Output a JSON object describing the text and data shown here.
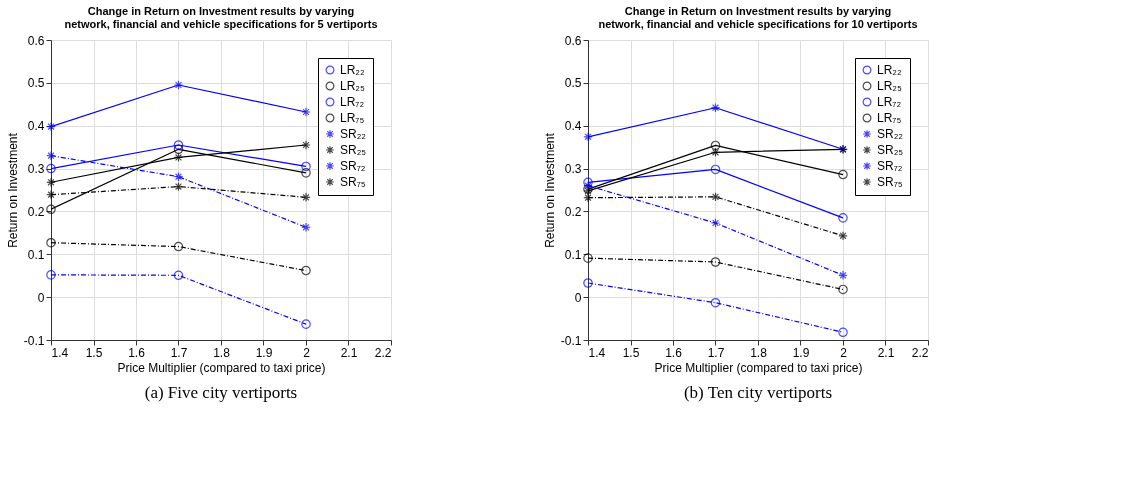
{
  "chart_data": [
    {
      "type": "line",
      "title": "Change in Return on Investment results by varying\nnetwork, financial and vehicle specifications for 5 vertiports",
      "xlabel": "Price Multiplier (compared to taxi price)",
      "ylabel": "Return on Investment",
      "x": [
        1.4,
        1.7,
        2
      ],
      "xlim": [
        1.4,
        2.2
      ],
      "xticks": [
        1.4,
        1.5,
        1.6,
        1.7,
        1.8,
        1.9,
        {
          "value": 2,
          "label": "2"
        },
        2.1,
        2.2
      ],
      "ylim": [
        -0.1,
        0.6
      ],
      "yticks": [
        -0.1,
        {
          "value": 0,
          "label": "0"
        },
        0.1,
        0.2,
        0.3,
        0.4,
        0.5,
        0.6
      ],
      "grid": true,
      "legend": "top right",
      "annotations": [
        "(a) Five city vertiports"
      ],
      "series": [
        {
          "name": "LR₂₂",
          "color": "#0000ff",
          "marker": "circle",
          "line_style": "solid",
          "values": [
            0.3,
            0.355,
            0.305
          ]
        },
        {
          "name": "LR₂₅",
          "color": "#000000",
          "marker": "circle",
          "line_style": "solid",
          "values": [
            0.205,
            0.345,
            0.29
          ]
        },
        {
          "name": "LR₇₂",
          "color": "#0000ff",
          "marker": "circle",
          "line_style": "dashdot",
          "values": [
            0.052,
            0.051,
            -0.063
          ]
        },
        {
          "name": "LR₇₅",
          "color": "#000000",
          "marker": "circle",
          "line_style": "dashdot",
          "values": [
            0.127,
            0.118,
            0.062
          ]
        },
        {
          "name": "SR₂₂",
          "color": "#0000ff",
          "marker": "cross",
          "line_style": "solid",
          "values": [
            0.398,
            0.495,
            0.432
          ]
        },
        {
          "name": "SR₂₅",
          "color": "#000000",
          "marker": "cross",
          "line_style": "solid",
          "values": [
            0.268,
            0.326,
            0.355
          ]
        },
        {
          "name": "SR₇₂",
          "color": "#0000ff",
          "marker": "cross",
          "line_style": "dashdot",
          "values": [
            0.33,
            0.281,
            0.163
          ]
        },
        {
          "name": "SR₇₅",
          "color": "#000000",
          "marker": "cross",
          "line_style": "dashdot",
          "values": [
            0.239,
            0.258,
            0.233
          ]
        }
      ]
    },
    {
      "type": "line",
      "title": "Change in Return on Investment results by varying\nnetwork, financial and vehicle specifications for 10 vertiports",
      "xlabel": "Price Multiplier (compared to taxi price)",
      "ylabel": "Return on Investment",
      "x": [
        1.4,
        1.7,
        2
      ],
      "xlim": [
        1.4,
        2.2
      ],
      "xticks": [
        1.4,
        1.5,
        1.6,
        1.7,
        1.8,
        1.9,
        {
          "value": 2,
          "label": "2"
        },
        2.1,
        2.2
      ],
      "ylim": [
        -0.1,
        0.6
      ],
      "yticks": [
        -0.1,
        {
          "value": 0,
          "label": "0"
        },
        0.1,
        0.2,
        0.3,
        0.4,
        0.5,
        0.6
      ],
      "grid": true,
      "legend": "top right",
      "annotations": [
        "(b) Ten city vertiports"
      ],
      "series": [
        {
          "name": "LR₂₂",
          "color": "#0000ff",
          "marker": "circle",
          "line_style": "solid",
          "values": [
            0.268,
            0.298,
            0.185
          ]
        },
        {
          "name": "LR₂₅",
          "color": "#000000",
          "marker": "circle",
          "line_style": "solid",
          "values": [
            0.252,
            0.354,
            0.286
          ]
        },
        {
          "name": "LR₇₂",
          "color": "#0000ff",
          "marker": "circle",
          "line_style": "dashdot",
          "values": [
            0.033,
            -0.013,
            -0.082
          ]
        },
        {
          "name": "LR₇₅",
          "color": "#000000",
          "marker": "circle",
          "line_style": "dashdot",
          "values": [
            0.091,
            0.082,
            0.018
          ]
        },
        {
          "name": "SR₂₂",
          "color": "#0000ff",
          "marker": "cross",
          "line_style": "solid",
          "values": [
            0.374,
            0.442,
            0.345
          ]
        },
        {
          "name": "SR₂₅",
          "color": "#000000",
          "marker": "cross",
          "line_style": "solid",
          "values": [
            0.248,
            0.338,
            0.345
          ]
        },
        {
          "name": "SR₇₂",
          "color": "#0000ff",
          "marker": "cross",
          "line_style": "dashdot",
          "values": [
            0.26,
            0.173,
            0.051
          ]
        },
        {
          "name": "SR₇₅",
          "color": "#000000",
          "marker": "cross",
          "line_style": "dashdot",
          "values": [
            0.232,
            0.234,
            0.143
          ]
        }
      ]
    }
  ]
}
